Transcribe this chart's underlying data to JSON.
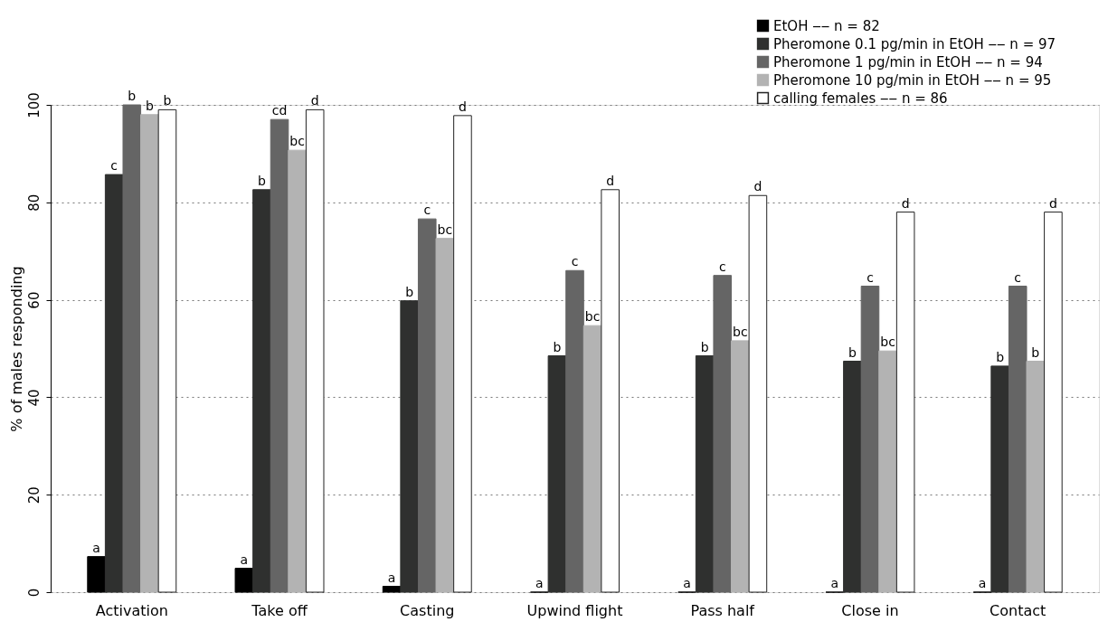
{
  "chart_data": {
    "type": "bar",
    "ylabel": "% of males responding",
    "categories": [
      "Activation",
      "Take off",
      "Casting",
      "Upwind flight",
      "Pass half",
      "Close in",
      "Contact"
    ],
    "series": [
      {
        "name": "EtOH  ‒‒  n = 82",
        "color": "#000000",
        "values": [
          7.3,
          4.9,
          1.2,
          0,
          0,
          0,
          0
        ],
        "value_labels": [
          "a",
          "a",
          "a",
          "a",
          "a",
          "a",
          "a"
        ]
      },
      {
        "name": "Pheromone 0.1 pg/min in EtOH  ‒‒  n = 97",
        "color": "#2f302f",
        "values": [
          85.7,
          82.6,
          59.8,
          48.5,
          48.5,
          47.4,
          46.4
        ],
        "value_labels": [
          "c",
          "b",
          "b",
          "b",
          "b",
          "b",
          "b"
        ]
      },
      {
        "name": "Pheromone 1 pg/min in EtOH  ‒‒  n = 94",
        "color": "#656565",
        "values": [
          100,
          97,
          76.6,
          66,
          65,
          62.8,
          62.8
        ],
        "value_labels": [
          "b",
          "cd",
          "c",
          "c",
          "c",
          "c",
          "c"
        ]
      },
      {
        "name": "Pheromone 10 pg/min in EtOH  ‒‒  n = 95",
        "color": "#b3b3b3",
        "values": [
          98,
          90.7,
          72.6,
          54.7,
          51.6,
          49.5,
          47.4
        ],
        "value_labels": [
          "b",
          "bc",
          "bc",
          "bc",
          "bc",
          "bc",
          "b"
        ]
      },
      {
        "name": "calling females  ‒‒  n = 86",
        "color": "#ffffff",
        "values": [
          99,
          99,
          97.8,
          82.6,
          81.4,
          78,
          78
        ],
        "value_labels": [
          "b",
          "d",
          "d",
          "d",
          "d",
          "d",
          "d"
        ]
      }
    ],
    "ylim": [
      0,
      100
    ],
    "yticks": [
      0,
      20,
      40,
      60,
      80,
      100
    ],
    "grid": "y",
    "legend": "top right"
  }
}
